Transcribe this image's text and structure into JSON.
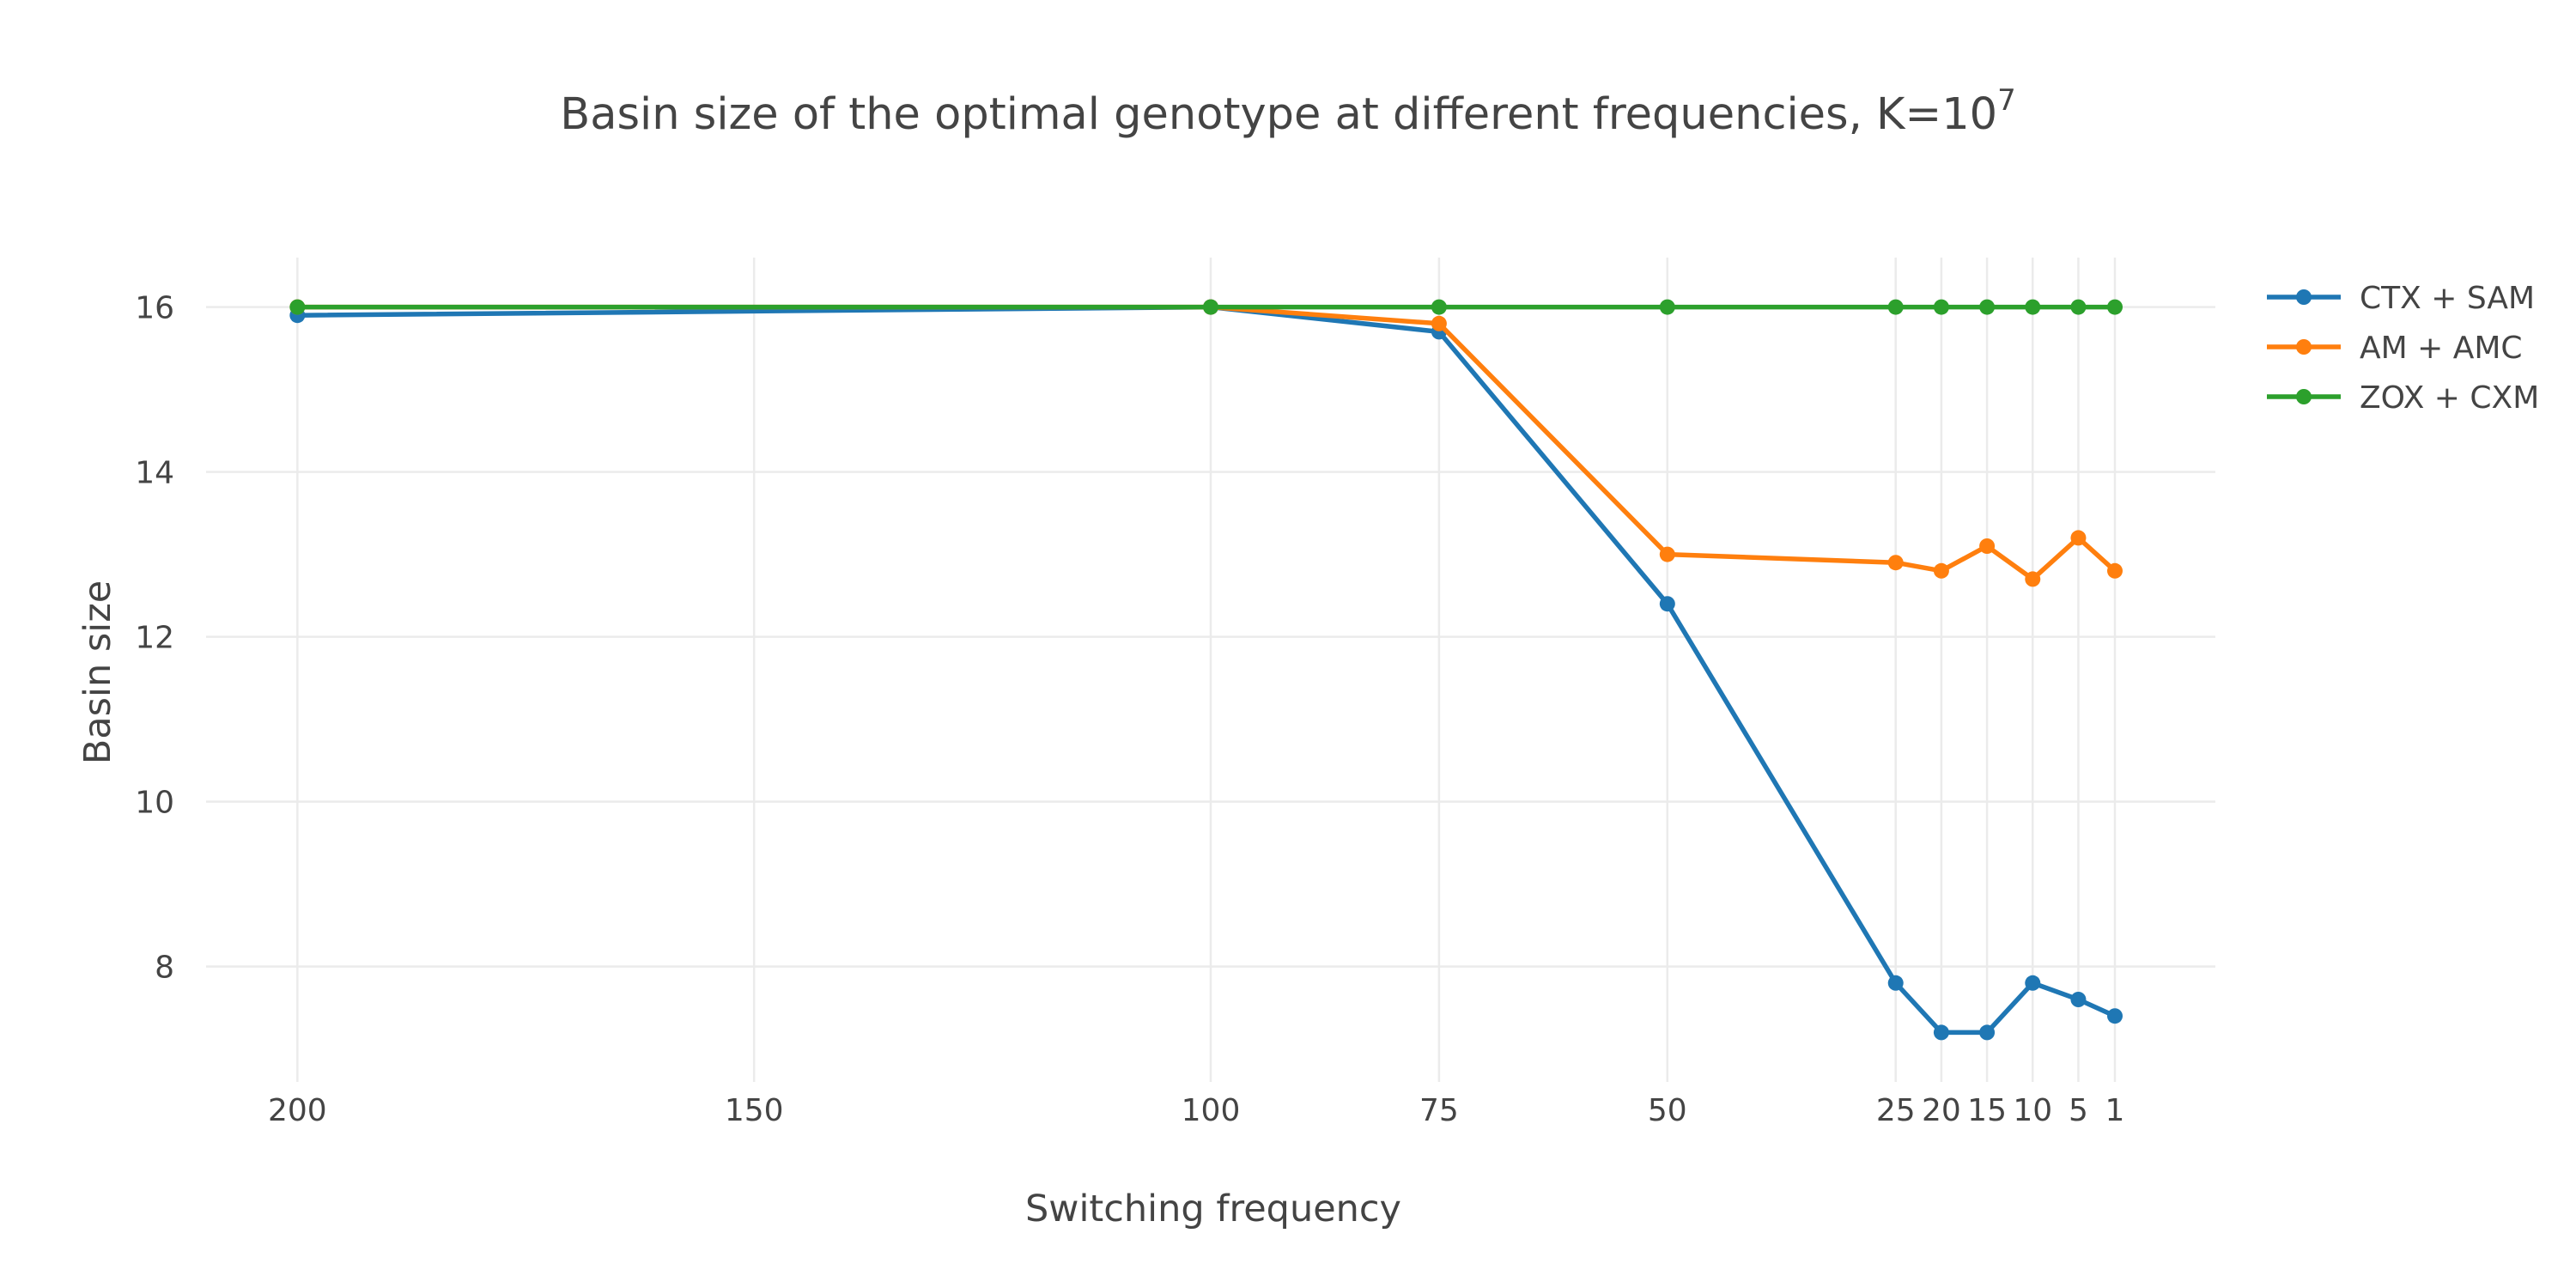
{
  "chart_data": {
    "type": "line",
    "title": "Basin size of the optimal genotype at different frequencies, K=10",
    "title_superscript": "7",
    "xlabel": "Switching frequency",
    "ylabel": "Basin size",
    "x_categories": [
      "200",
      "150",
      "100",
      "75",
      "50",
      "25",
      "20",
      "15",
      "10",
      "5",
      "1"
    ],
    "x_positions": [
      200,
      150,
      100,
      75,
      50,
      25,
      20,
      15,
      10,
      5,
      1
    ],
    "x_axis_reversed": true,
    "xlim": [
      210,
      -10
    ],
    "ylim": [
      6.6,
      16.6
    ],
    "yticks": [
      8,
      10,
      12,
      14,
      16
    ],
    "grid": true,
    "legend_position": "top-right",
    "series": [
      {
        "name": "CTX + SAM",
        "color": "#1f77b4",
        "x": [
          200,
          100,
          75,
          50,
          25,
          20,
          15,
          10,
          5,
          1
        ],
        "y": [
          15.9,
          16.0,
          15.7,
          12.4,
          7.8,
          7.2,
          7.2,
          7.8,
          7.6,
          7.4
        ]
      },
      {
        "name": "AM + AMC",
        "color": "#ff7f0e",
        "x": [
          200,
          100,
          75,
          50,
          25,
          20,
          15,
          10,
          5,
          1
        ],
        "y": [
          16.0,
          16.0,
          15.8,
          13.0,
          12.9,
          12.8,
          13.1,
          12.7,
          13.2,
          12.8
        ]
      },
      {
        "name": "ZOX + CXM",
        "color": "#2ca02c",
        "x": [
          200,
          100,
          75,
          50,
          25,
          20,
          15,
          10,
          5,
          1
        ],
        "y": [
          16.0,
          16.0,
          16.0,
          16.0,
          16.0,
          16.0,
          16.0,
          16.0,
          16.0,
          16.0
        ]
      }
    ]
  }
}
